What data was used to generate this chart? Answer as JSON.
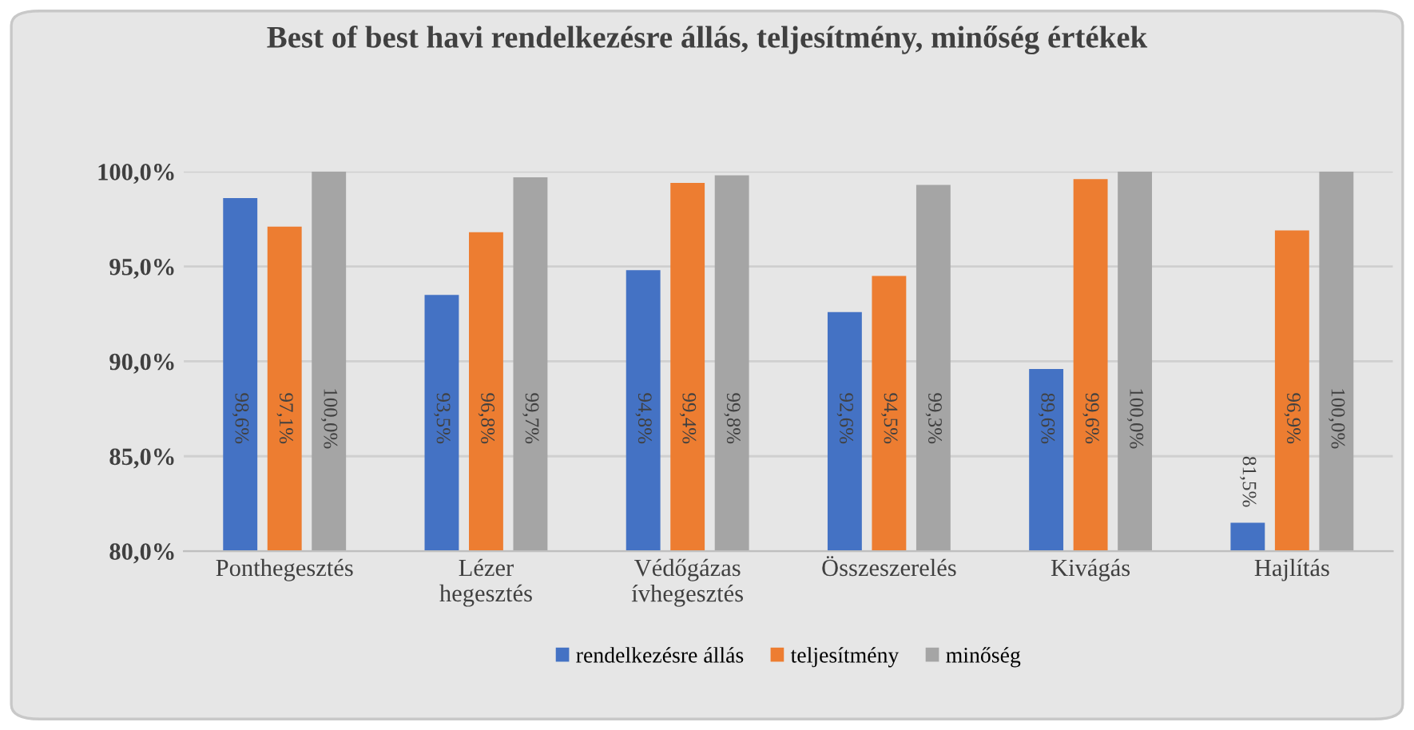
{
  "chart_data": {
    "type": "bar",
    "title": "Best of best havi rendelkezésre állás, teljesítmény, minőség értékek",
    "categories": [
      "Ponthegesztés",
      "Lézer\nhegesztés",
      "Védőgázas\nívhegesztés",
      "Összeszerelés",
      "Kivágás",
      "Hajlítás"
    ],
    "series": [
      {
        "name": "rendelkezésre állás",
        "color": "#4472c4",
        "values": [
          98.6,
          93.5,
          94.8,
          92.6,
          89.6,
          81.5
        ],
        "value_labels": [
          "98,6%",
          "93,5%",
          "94,8%",
          "92,6%",
          "89,6%",
          "81,5%"
        ]
      },
      {
        "name": "teljesítmény",
        "color": "#ed7d31",
        "values": [
          97.1,
          96.8,
          99.4,
          94.5,
          99.6,
          96.9
        ],
        "value_labels": [
          "97,1%",
          "96,8%",
          "99,4%",
          "94,5%",
          "99,6%",
          "96,9%"
        ]
      },
      {
        "name": "minőség",
        "color": "#a5a5a5",
        "values": [
          100.0,
          99.7,
          99.8,
          99.3,
          100.0,
          100.0
        ],
        "value_labels": [
          "100,0%",
          "99,7%",
          "99,8%",
          "99,3%",
          "100,0%",
          "100,0%"
        ]
      }
    ],
    "ylim": [
      80,
      100
    ],
    "yticks": [
      {
        "value": 80,
        "label": "80,0%"
      },
      {
        "value": 85,
        "label": "85,0%"
      },
      {
        "value": 90,
        "label": "90,0%"
      },
      {
        "value": 95,
        "label": "95,0%"
      },
      {
        "value": 100,
        "label": "100,0%"
      }
    ],
    "grid": "y",
    "legend": "bottom"
  }
}
